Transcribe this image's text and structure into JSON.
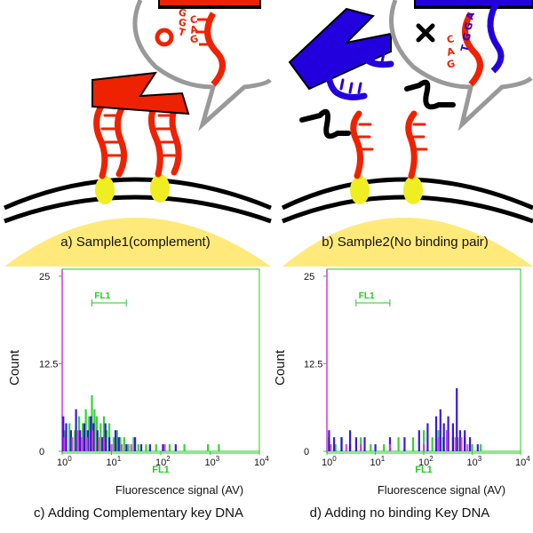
{
  "colors": {
    "red": "#ee2200",
    "blue": "#2200dd",
    "yellow": "#eeee22",
    "membrane": "#ffe97a",
    "green": "#22cc22",
    "magenta": "#dd33dd",
    "bubble": "#999999"
  },
  "icons": {
    "match": "circle",
    "mismatch": "cross"
  },
  "panels": {
    "a": {
      "caption": "a) Sample1(complement)",
      "sequence": [
        "G",
        "G",
        "T",
        "C",
        "A",
        "G"
      ]
    },
    "b": {
      "caption": "b) Sample2(No binding pair)",
      "sequence": [
        "A",
        "G",
        "G",
        "T",
        "C",
        "A",
        "G"
      ]
    }
  },
  "chart_data": [
    {
      "type": "histogram",
      "panel": "c",
      "caption": "c) Adding Complementary key DNA",
      "ylabel": "Count",
      "xlabel": "Fluorescence signal (AV)",
      "x_axis_name": "FL1",
      "gate_label": "FL1",
      "x_scale": "log",
      "xlim": [
        1,
        10000
      ],
      "ylim": [
        0,
        26
      ],
      "y_ticks": [
        "0",
        "12.5",
        "25"
      ],
      "x_ticks": [
        "10^0",
        "10^1",
        "10^2",
        "10^3",
        "10^4"
      ],
      "gate_range": [
        4,
        20
      ],
      "series": [
        {
          "color": "#22cc22",
          "bins": [
            [
              1.1,
              3
            ],
            [
              1.4,
              4
            ],
            [
              1.8,
              3
            ],
            [
              2.2,
              5
            ],
            [
              2.6,
              4
            ],
            [
              3,
              6
            ],
            [
              3.5,
              5
            ],
            [
              4,
              8
            ],
            [
              4.5,
              6
            ],
            [
              5,
              5
            ],
            [
              6,
              4
            ],
            [
              7,
              5
            ],
            [
              8,
              3
            ],
            [
              9,
              4
            ],
            [
              11,
              2
            ],
            [
              13,
              3
            ],
            [
              15,
              2
            ],
            [
              18,
              2
            ],
            [
              22,
              1
            ],
            [
              28,
              2
            ],
            [
              35,
              1
            ],
            [
              50,
              1
            ],
            [
              80,
              1
            ],
            [
              150,
              1
            ],
            [
              300,
              1
            ],
            [
              900,
              1
            ],
            [
              1500,
              1
            ]
          ]
        },
        {
          "color": "#2200dd",
          "bins": [
            [
              1.05,
              5
            ],
            [
              1.2,
              4
            ],
            [
              1.5,
              3
            ],
            [
              1.9,
              6
            ],
            [
              2.3,
              3
            ],
            [
              2.8,
              4
            ],
            [
              3.3,
              3
            ],
            [
              3.8,
              5
            ],
            [
              4.3,
              4
            ],
            [
              5.2,
              3
            ],
            [
              6.5,
              2
            ],
            [
              7.5,
              4
            ],
            [
              9,
              2
            ],
            [
              12,
              3
            ],
            [
              14,
              2
            ],
            [
              20,
              1
            ],
            [
              30,
              2
            ],
            [
              40,
              1
            ],
            [
              60,
              1
            ],
            [
              110,
              1
            ],
            [
              200,
              1
            ]
          ]
        },
        {
          "color": "#dd33dd",
          "bins": [
            [
              1.1,
              2
            ],
            [
              1.6,
              2
            ],
            [
              2.1,
              3
            ],
            [
              2.5,
              2
            ],
            [
              3.2,
              2
            ],
            [
              4.1,
              3
            ],
            [
              5.5,
              2
            ],
            [
              7,
              2
            ],
            [
              10,
              1
            ],
            [
              16,
              1
            ],
            [
              25,
              1
            ],
            [
              120,
              1
            ]
          ]
        }
      ]
    },
    {
      "type": "histogram",
      "panel": "d",
      "caption": "d) Adding no binding Key DNA",
      "ylabel": "Count",
      "xlabel": "Fluorescence signal (AV)",
      "x_axis_name": "FL1",
      "gate_label": "FL1",
      "x_scale": "log",
      "xlim": [
        1,
        10000
      ],
      "ylim": [
        0,
        26
      ],
      "y_ticks": [
        "0",
        "12.5",
        "25"
      ],
      "x_ticks": [
        "10^0",
        "10^1",
        "10^2",
        "10^3",
        "10^4"
      ],
      "gate_range": [
        4,
        20
      ],
      "series": [
        {
          "color": "#22cc22",
          "bins": [
            [
              1.1,
              2
            ],
            [
              1.5,
              1
            ],
            [
              2,
              2
            ],
            [
              3,
              1
            ],
            [
              5,
              2
            ],
            [
              8,
              1
            ],
            [
              15,
              1
            ],
            [
              30,
              2
            ],
            [
              60,
              2
            ],
            [
              100,
              3
            ],
            [
              150,
              2
            ],
            [
              200,
              3
            ],
            [
              250,
              2
            ],
            [
              300,
              3
            ],
            [
              400,
              2
            ],
            [
              500,
              2
            ],
            [
              700,
              2
            ],
            [
              1000,
              1
            ],
            [
              1500,
              1
            ]
          ]
        },
        {
          "color": "#2200dd",
          "bins": [
            [
              1.1,
              3
            ],
            [
              1.4,
              2
            ],
            [
              2,
              2
            ],
            [
              3,
              3
            ],
            [
              4,
              2
            ],
            [
              6,
              2
            ],
            [
              10,
              1
            ],
            [
              20,
              2
            ],
            [
              40,
              2
            ],
            [
              80,
              3
            ],
            [
              120,
              4
            ],
            [
              180,
              5
            ],
            [
              220,
              6
            ],
            [
              260,
              4
            ],
            [
              320,
              5
            ],
            [
              400,
              4
            ],
            [
              480,
              9
            ],
            [
              560,
              3
            ],
            [
              700,
              3
            ],
            [
              900,
              2
            ],
            [
              1300,
              1
            ]
          ]
        },
        {
          "color": "#dd33dd",
          "bins": [
            [
              1.2,
              1
            ],
            [
              2.5,
              1
            ],
            [
              5,
              1
            ],
            [
              20,
              1
            ],
            [
              100,
              1
            ],
            [
              200,
              2
            ],
            [
              300,
              3
            ],
            [
              450,
              2
            ],
            [
              600,
              2
            ],
            [
              800,
              1
            ]
          ]
        }
      ]
    }
  ]
}
